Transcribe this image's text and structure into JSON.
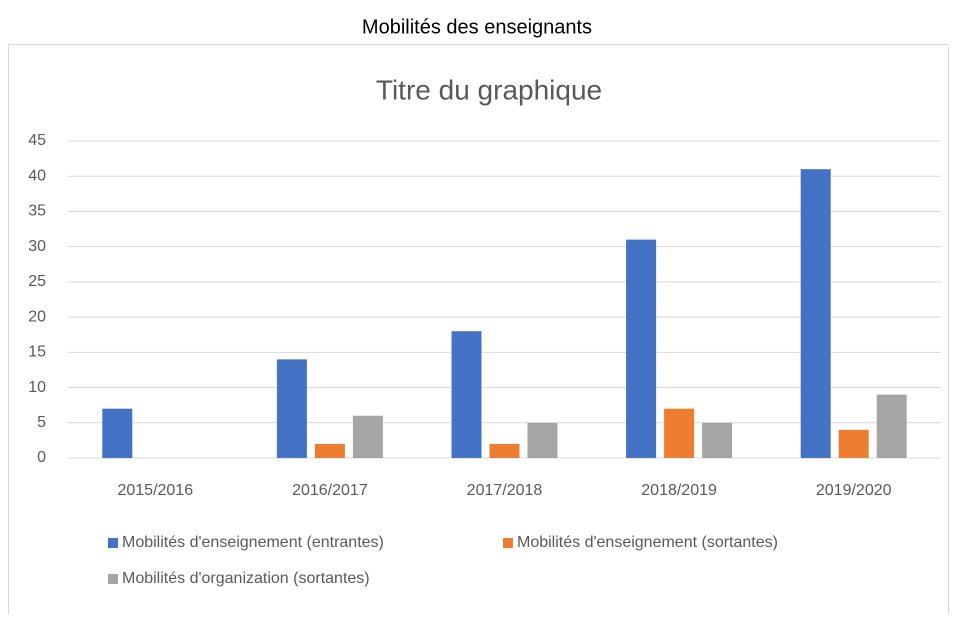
{
  "page_title": "Mobilités des enseignants",
  "chart_data": {
    "type": "bar",
    "title": "Titre du graphique",
    "categories": [
      "2015/2016",
      "2016/2017",
      "2017/2018",
      "2018/2019",
      "2019/2020"
    ],
    "series": [
      {
        "name": "Mobilités d'enseignement (entrantes)",
        "color": "#4472c4",
        "values": [
          7,
          14,
          18,
          31,
          41
        ]
      },
      {
        "name": "Mobilités d'enseignement (sortantes)",
        "color": "#ed7d31",
        "values": [
          0,
          2,
          2,
          7,
          4
        ]
      },
      {
        "name": "Mobilités d'organization (sortantes)",
        "color": "#a5a5a5",
        "values": [
          0,
          6,
          5,
          5,
          9
        ]
      }
    ],
    "ylim": [
      0,
      45
    ],
    "yticks": [
      0,
      5,
      10,
      15,
      20,
      25,
      30,
      35,
      40,
      45
    ],
    "grid": true,
    "legend": "bottom"
  }
}
